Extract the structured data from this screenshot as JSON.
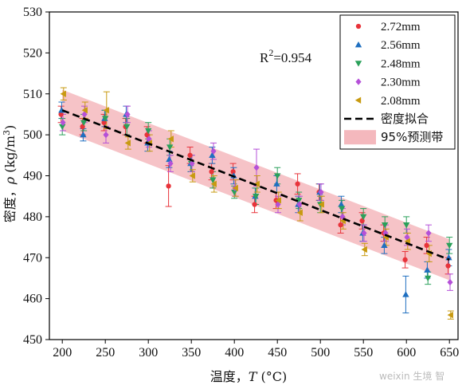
{
  "chart_data": {
    "type": "scatter",
    "xlabel_prefix": "温度，",
    "xlabel_var": "T",
    "xlabel_unit": " (°C)",
    "ylabel_prefix": "密度，",
    "ylabel_var": "ρ",
    "ylabel_unit": " (kg/m",
    "ylabel_unit_sup": "3",
    "ylabel_unit_end": ")",
    "xlim": [
      185,
      660
    ],
    "ylim": [
      450,
      530
    ],
    "xticks": [
      200,
      250,
      300,
      350,
      400,
      450,
      500,
      550,
      600,
      650
    ],
    "yticks": [
      450,
      460,
      470,
      480,
      490,
      500,
      510,
      520,
      530
    ],
    "r2_label": "R",
    "r2_sup": "2",
    "r2_value": "=0.954",
    "fit": {
      "name": "密度拟合",
      "x": [
        200,
        650
      ],
      "y": [
        506,
        469.5
      ],
      "color": "#000000"
    },
    "band": {
      "name": "95%预测带",
      "half_width": 5,
      "color": "#f4b8bd"
    },
    "legend_position": "top-right",
    "series": [
      {
        "name": "2.72mm",
        "marker": "circle",
        "color": "#e8333a",
        "x": [
          200,
          225,
          250,
          275,
          300,
          325,
          350,
          375,
          400,
          425,
          450,
          475,
          500,
          525,
          550,
          575,
          600,
          625,
          650
        ],
        "y": [
          505,
          502,
          503,
          502,
          500,
          487.5,
          495,
          491,
          491,
          483,
          484,
          488,
          486,
          478,
          479,
          476,
          469.5,
          473,
          468
        ],
        "err": [
          2,
          2,
          2,
          2,
          2,
          5,
          2,
          2,
          2,
          2,
          2,
          2.5,
          2,
          2,
          2,
          2,
          2,
          2,
          2
        ]
      },
      {
        "name": "2.56mm",
        "marker": "triangle-up",
        "color": "#1f6fc0",
        "x": [
          200,
          225,
          250,
          275,
          300,
          325,
          350,
          375,
          400,
          425,
          450,
          475,
          500,
          525,
          550,
          575,
          600,
          625,
          650
        ],
        "y": [
          506,
          500,
          504,
          505,
          498,
          494,
          493,
          495,
          490,
          485,
          488,
          483,
          486,
          483,
          476,
          473,
          461,
          467,
          470
        ],
        "err": [
          2,
          1.5,
          2,
          2,
          2,
          2,
          2,
          2,
          2,
          2,
          2,
          2,
          2,
          2,
          2,
          2,
          4.5,
          2,
          2
        ]
      },
      {
        "name": "2.48mm",
        "marker": "triangle-down",
        "color": "#2aa05a",
        "x": [
          200,
          225,
          250,
          275,
          300,
          325,
          350,
          375,
          400,
          425,
          450,
          475,
          500,
          525,
          550,
          575,
          600,
          625,
          650
        ],
        "y": [
          502,
          503,
          504,
          502,
          501,
          497,
          493,
          489,
          486,
          485,
          490,
          484,
          483,
          482,
          480,
          478,
          478,
          465,
          473
        ],
        "err": [
          2,
          2,
          2,
          2,
          2,
          2,
          2,
          2,
          1.5,
          2,
          2,
          2,
          2,
          2,
          2,
          2,
          2,
          1.5,
          2
        ]
      },
      {
        "name": "2.30mm",
        "marker": "diamond",
        "color": "#b550d8",
        "x": [
          200,
          225,
          250,
          275,
          300,
          325,
          350,
          375,
          400,
          425,
          450,
          475,
          500,
          525,
          550,
          575,
          600,
          625,
          650
        ],
        "y": [
          503,
          505,
          500,
          505,
          499,
          493,
          493,
          496,
          487,
          492,
          483,
          483,
          486,
          480,
          476,
          476,
          475,
          476,
          464
        ],
        "err": [
          2,
          2,
          2,
          2,
          2,
          2,
          2,
          2,
          2,
          4.5,
          2,
          2,
          2,
          2,
          2,
          2,
          2,
          2,
          2
        ]
      },
      {
        "name": "2.08mm",
        "marker": "triangle-left",
        "color": "#c89a10",
        "x": [
          200,
          225,
          250,
          275,
          300,
          325,
          350,
          375,
          400,
          425,
          450,
          475,
          500,
          525,
          550,
          575,
          600,
          625,
          650
        ],
        "y": [
          510,
          506,
          506,
          498,
          498,
          499,
          490,
          488,
          487,
          488,
          484,
          481,
          483,
          479,
          472,
          475,
          474,
          471,
          456
        ],
        "err": [
          1.5,
          2,
          4.5,
          1.5,
          2,
          2,
          1.5,
          2,
          2,
          2,
          2,
          2,
          2,
          2,
          1.5,
          2,
          2,
          2,
          1
        ]
      }
    ]
  },
  "watermark": "weixin 生境 智"
}
